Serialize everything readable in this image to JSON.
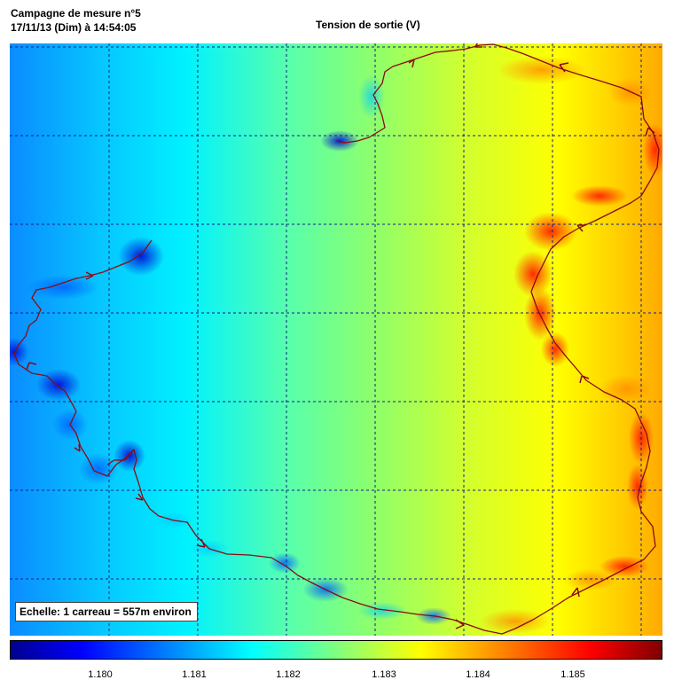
{
  "header": {
    "campaign": "Campagne de mesure n°5",
    "datetime": "17/11/13 (Dim) à 14:54:05",
    "title": "Tension de sortie (V)"
  },
  "map": {
    "scale_label": "Echelle: 1 carreau = 557m environ",
    "grid_style": "dashed dark blue",
    "background": "heatmap gradient from blue (left) through cyan and green to yellow/orange (right)",
    "track_color": "#8a0a12"
  },
  "colorbar": {
    "colormap": "jet",
    "tick_labels": [
      "1.180",
      "1.181",
      "1.182",
      "1.183",
      "1.184",
      "1.185"
    ],
    "stops": [
      "#00008f",
      "#0000ff",
      "#007fff",
      "#00ffff",
      "#7fff7f",
      "#ffff00",
      "#ff7f00",
      "#ff0000",
      "#7f0000"
    ]
  }
}
